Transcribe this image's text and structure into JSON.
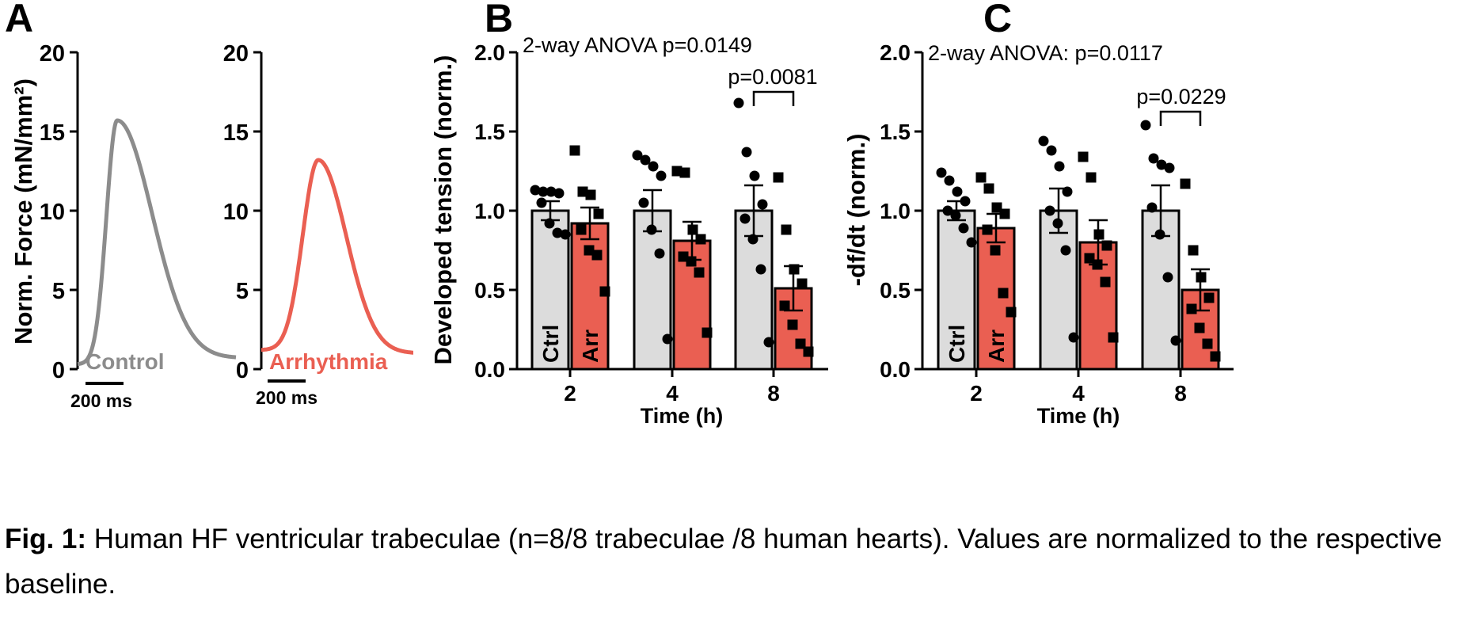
{
  "panels": {
    "a": "A",
    "b": "B",
    "c": "C"
  },
  "trace_scale": {
    "label": "200 ms"
  },
  "caption": {
    "bold": "Fig. 1:",
    "text": " Human HF ventricular trabeculae (n=8/8 trabeculae /8 human hearts). Values are normalized to the respective baseline."
  },
  "colors": {
    "control": "#8c8c8c",
    "arrhythmia": "#ea5f52",
    "ctrl_bar": "#dcdcdc",
    "arr_bar": "#ea5f52"
  },
  "chart_data": [
    {
      "id": "A1",
      "type": "line",
      "ylabel": "Norm. Force (mN/mm²)",
      "ylim": [
        0,
        20
      ],
      "yticks": [
        0,
        5,
        10,
        15,
        20
      ],
      "series": [
        {
          "name": "Control",
          "peak": 15.7,
          "start": 0.3,
          "end": 0.7
        }
      ]
    },
    {
      "id": "A2",
      "type": "line",
      "ylim": [
        0,
        20
      ],
      "yticks": [
        0,
        5,
        10,
        15,
        20
      ],
      "series": [
        {
          "name": "Arrhythmia",
          "peak": 13.2,
          "start": 1.2,
          "end": 1.0
        }
      ]
    },
    {
      "id": "B",
      "type": "bar",
      "title": "2-way ANOVA p=0.0149",
      "xlabel": "Time (h)",
      "ylabel": "Developed tension (norm.)",
      "ylim": [
        0,
        2
      ],
      "yticks": [
        "0.0",
        "0.5",
        "1.0",
        "1.5",
        "2.0"
      ],
      "categories": [
        "2",
        "4",
        "8"
      ],
      "series": [
        {
          "name": "Ctrl",
          "values": [
            1.0,
            1.0,
            1.0
          ],
          "sem": [
            0.06,
            0.13,
            0.16
          ],
          "points": [
            [
              1.13,
              1.12,
              1.12,
              1.11,
              1.05,
              0.92,
              0.86,
              0.85
            ],
            [
              1.35,
              1.32,
              1.28,
              1.22,
              1.05,
              0.88,
              0.73,
              0.19
            ],
            [
              1.68,
              1.37,
              1.22,
              1.04,
              0.95,
              0.82,
              0.63,
              0.17
            ]
          ]
        },
        {
          "name": "Arr",
          "values": [
            0.92,
            0.81,
            0.51
          ],
          "sem": [
            0.1,
            0.12,
            0.14
          ],
          "points": [
            [
              1.38,
              1.12,
              1.1,
              0.98,
              0.88,
              0.75,
              0.72,
              0.49
            ],
            [
              1.25,
              1.24,
              0.88,
              0.82,
              0.71,
              0.68,
              0.61,
              0.23
            ],
            [
              1.21,
              0.88,
              0.63,
              0.54,
              0.4,
              0.28,
              0.16,
              0.11
            ]
          ]
        }
      ],
      "annotation": {
        "text": "p=0.0081",
        "category": "8"
      }
    },
    {
      "id": "C",
      "type": "bar",
      "title": "2-way ANOVA: p=0.0117",
      "xlabel": "Time (h)",
      "ylabel": "-df/dt (norm.)",
      "ylim": [
        0,
        2
      ],
      "yticks": [
        "0.0",
        "0.5",
        "1.0",
        "1.5",
        "2.0"
      ],
      "categories": [
        "2",
        "4",
        "8"
      ],
      "series": [
        {
          "name": "Ctrl",
          "values": [
            1.0,
            1.0,
            1.0
          ],
          "sem": [
            0.06,
            0.14,
            0.16
          ],
          "points": [
            [
              1.24,
              1.19,
              1.12,
              1.06,
              1.0,
              0.97,
              0.89,
              0.8
            ],
            [
              1.44,
              1.38,
              1.28,
              1.12,
              1.0,
              0.92,
              0.75,
              0.2
            ],
            [
              1.54,
              1.33,
              1.29,
              1.27,
              1.02,
              0.85,
              0.58,
              0.18
            ]
          ]
        },
        {
          "name": "Arr",
          "values": [
            0.89,
            0.8,
            0.5
          ],
          "sem": [
            0.09,
            0.14,
            0.13
          ],
          "points": [
            [
              1.21,
              1.14,
              1.02,
              0.98,
              0.88,
              0.75,
              0.48,
              0.36
            ],
            [
              1.34,
              1.21,
              0.85,
              0.78,
              0.7,
              0.66,
              0.55,
              0.2
            ],
            [
              1.17,
              0.75,
              0.58,
              0.45,
              0.38,
              0.26,
              0.16,
              0.08
            ]
          ]
        }
      ],
      "annotation": {
        "text": "p=0.0229",
        "category": "8"
      }
    }
  ]
}
